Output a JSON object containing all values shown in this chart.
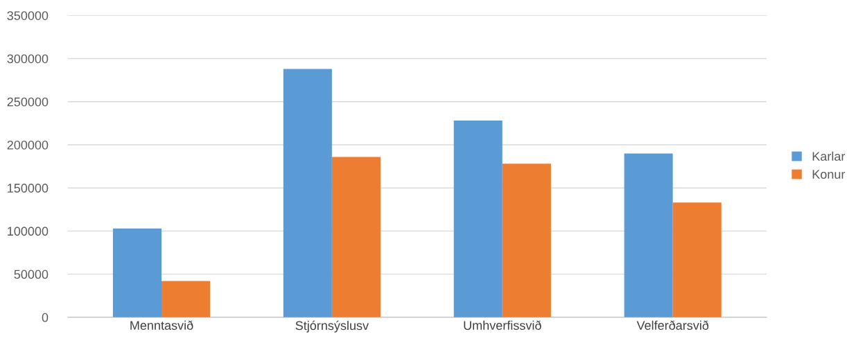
{
  "chart_data": {
    "type": "bar",
    "categories": [
      "Menntasvið",
      "Stjórnsýslusv",
      "Umhverfissvið",
      "Velferðarsvið"
    ],
    "series": [
      {
        "name": "Karlar",
        "color": "#5b9bd5",
        "values": [
          103000,
          288000,
          228000,
          190000
        ]
      },
      {
        "name": "Konur",
        "color": "#ed7d31",
        "values": [
          42000,
          186000,
          178000,
          133000
        ]
      }
    ],
    "ylim": [
      0,
      350000
    ],
    "yticks": [
      0,
      50000,
      100000,
      150000,
      200000,
      250000,
      300000,
      350000
    ],
    "grid": "y",
    "legend": "right"
  }
}
